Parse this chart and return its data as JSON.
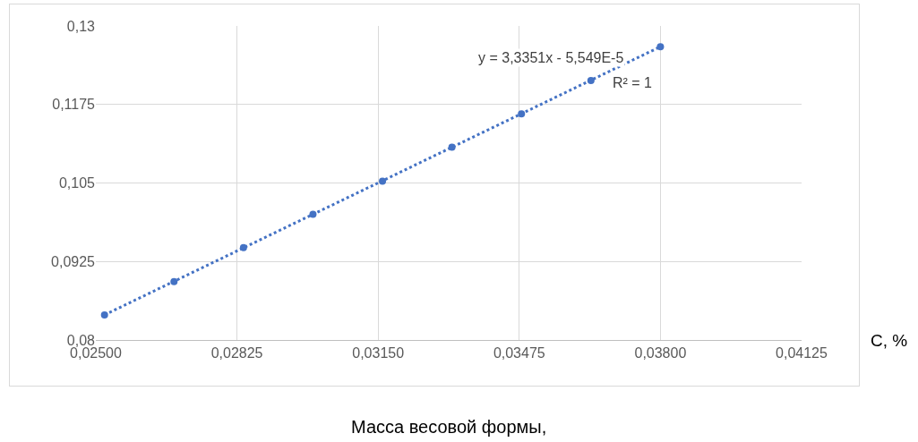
{
  "chart_data": {
    "type": "scatter",
    "xlabel": "C, %",
    "x": [
      0.0252,
      0.0268,
      0.0284,
      0.03,
      0.0316,
      0.0332,
      0.0348,
      0.0364,
      0.038
    ],
    "series": [
      {
        "color": "#4472c4",
        "values": [
          0.084,
          0.0893,
          0.0947,
          0.1,
          0.1053,
          0.1107,
          0.116,
          0.1213,
          0.1267
        ]
      },
      {
        "type": "line",
        "color": "#4472c4",
        "line_style": "dotted",
        "x": [
          0.0252,
          0.038
        ],
        "values": [
          0.084,
          0.1267
        ]
      }
    ],
    "xlim": [
      0.025,
      0.04125
    ],
    "xticks": [
      {
        "value": 0.025,
        "label": "0,02500"
      },
      {
        "value": 0.02825,
        "label": "0,02825"
      },
      {
        "value": 0.0315,
        "label": "0,03150"
      },
      {
        "value": 0.03475,
        "label": "0,03475"
      },
      {
        "value": 0.038,
        "label": "0,03800"
      },
      {
        "value": 0.04125,
        "label": "0,04125"
      }
    ],
    "ylim": [
      0.08,
      0.13
    ],
    "yticks": [
      {
        "value": 0.08,
        "label": "0,08"
      },
      {
        "value": 0.0925,
        "label": "0,0925"
      },
      {
        "value": 0.105,
        "label": "0,105"
      },
      {
        "value": 0.1175,
        "label": "0,1175"
      },
      {
        "value": 0.13,
        "label": "0,13"
      }
    ],
    "grid": true,
    "annotations": [
      "y = 3,3351x - 5,549E-5",
      "R² = 1",
      "Масса весовой формы,"
    ]
  }
}
